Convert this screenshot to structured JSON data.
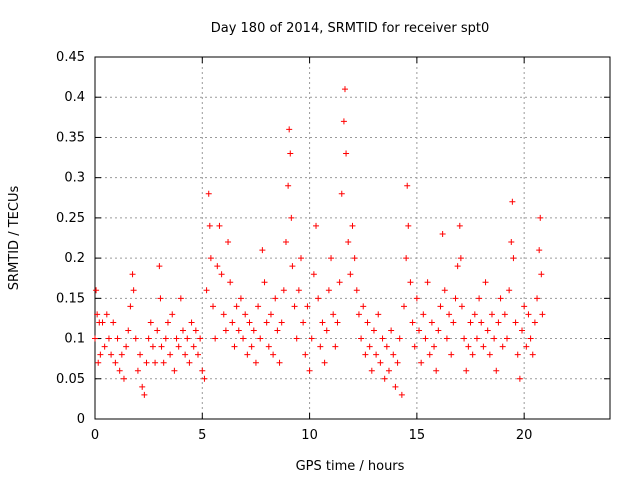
{
  "chart_data": {
    "type": "scatter",
    "title": "Day 180 of 2014, SRMTID for receiver spt0",
    "xlabel": "GPS time / hours",
    "ylabel": "SRMTID / TECUs",
    "xlim": [
      0,
      24
    ],
    "ylim": [
      0,
      0.45
    ],
    "xticks": [
      0,
      5,
      10,
      15,
      20
    ],
    "yticks": [
      0,
      0.05,
      0.1,
      0.15,
      0.2,
      0.25,
      0.3,
      0.35,
      0.4,
      0.45
    ],
    "grid": true,
    "marker": "+",
    "color": "#ff0000",
    "series": [
      {
        "name": "SRMTID",
        "points": [
          [
            0.0,
            0.1
          ],
          [
            0.05,
            0.16
          ],
          [
            0.1,
            0.13
          ],
          [
            0.15,
            0.07
          ],
          [
            0.2,
            0.12
          ],
          [
            0.25,
            0.08
          ],
          [
            0.35,
            0.12
          ],
          [
            0.45,
            0.09
          ],
          [
            0.55,
            0.13
          ],
          [
            0.65,
            0.1
          ],
          [
            0.75,
            0.08
          ],
          [
            0.85,
            0.12
          ],
          [
            0.95,
            0.07
          ],
          [
            1.05,
            0.1
          ],
          [
            1.15,
            0.06
          ],
          [
            1.25,
            0.08
          ],
          [
            1.35,
            0.05
          ],
          [
            1.45,
            0.09
          ],
          [
            1.55,
            0.11
          ],
          [
            1.65,
            0.14
          ],
          [
            1.75,
            0.18
          ],
          [
            1.8,
            0.16
          ],
          [
            1.9,
            0.1
          ],
          [
            2.0,
            0.06
          ],
          [
            2.1,
            0.08
          ],
          [
            2.2,
            0.04
          ],
          [
            2.3,
            0.03
          ],
          [
            2.4,
            0.07
          ],
          [
            2.5,
            0.1
          ],
          [
            2.6,
            0.12
          ],
          [
            2.7,
            0.09
          ],
          [
            2.8,
            0.07
          ],
          [
            2.9,
            0.11
          ],
          [
            3.0,
            0.19
          ],
          [
            3.05,
            0.15
          ],
          [
            3.1,
            0.09
          ],
          [
            3.2,
            0.07
          ],
          [
            3.3,
            0.1
          ],
          [
            3.4,
            0.12
          ],
          [
            3.5,
            0.08
          ],
          [
            3.6,
            0.13
          ],
          [
            3.7,
            0.06
          ],
          [
            3.8,
            0.1
          ],
          [
            3.9,
            0.09
          ],
          [
            4.0,
            0.15
          ],
          [
            4.1,
            0.11
          ],
          [
            4.2,
            0.08
          ],
          [
            4.3,
            0.1
          ],
          [
            4.4,
            0.07
          ],
          [
            4.5,
            0.12
          ],
          [
            4.6,
            0.09
          ],
          [
            4.7,
            0.11
          ],
          [
            4.8,
            0.08
          ],
          [
            4.9,
            0.1
          ],
          [
            5.0,
            0.06
          ],
          [
            5.1,
            0.05
          ],
          [
            5.2,
            0.16
          ],
          [
            5.3,
            0.28
          ],
          [
            5.35,
            0.24
          ],
          [
            5.4,
            0.2
          ],
          [
            5.5,
            0.14
          ],
          [
            5.6,
            0.1
          ],
          [
            5.7,
            0.19
          ],
          [
            5.8,
            0.24
          ],
          [
            5.9,
            0.18
          ],
          [
            6.0,
            0.13
          ],
          [
            6.1,
            0.11
          ],
          [
            6.2,
            0.22
          ],
          [
            6.3,
            0.17
          ],
          [
            6.4,
            0.12
          ],
          [
            6.5,
            0.09
          ],
          [
            6.6,
            0.14
          ],
          [
            6.7,
            0.11
          ],
          [
            6.8,
            0.15
          ],
          [
            6.9,
            0.1
          ],
          [
            7.0,
            0.13
          ],
          [
            7.1,
            0.08
          ],
          [
            7.2,
            0.12
          ],
          [
            7.3,
            0.09
          ],
          [
            7.4,
            0.11
          ],
          [
            7.5,
            0.07
          ],
          [
            7.6,
            0.14
          ],
          [
            7.7,
            0.1
          ],
          [
            7.8,
            0.21
          ],
          [
            7.9,
            0.17
          ],
          [
            8.0,
            0.12
          ],
          [
            8.1,
            0.09
          ],
          [
            8.2,
            0.13
          ],
          [
            8.3,
            0.08
          ],
          [
            8.4,
            0.15
          ],
          [
            8.5,
            0.11
          ],
          [
            8.6,
            0.07
          ],
          [
            8.7,
            0.12
          ],
          [
            8.8,
            0.16
          ],
          [
            8.9,
            0.22
          ],
          [
            9.0,
            0.29
          ],
          [
            9.05,
            0.36
          ],
          [
            9.1,
            0.33
          ],
          [
            9.15,
            0.25
          ],
          [
            9.2,
            0.19
          ],
          [
            9.3,
            0.14
          ],
          [
            9.4,
            0.1
          ],
          [
            9.5,
            0.16
          ],
          [
            9.6,
            0.2
          ],
          [
            9.7,
            0.12
          ],
          [
            9.8,
            0.08
          ],
          [
            9.9,
            0.14
          ],
          [
            10.0,
            0.06
          ],
          [
            10.1,
            0.1
          ],
          [
            10.2,
            0.18
          ],
          [
            10.3,
            0.24
          ],
          [
            10.4,
            0.15
          ],
          [
            10.5,
            0.09
          ],
          [
            10.6,
            0.12
          ],
          [
            10.7,
            0.07
          ],
          [
            10.8,
            0.11
          ],
          [
            10.9,
            0.16
          ],
          [
            11.0,
            0.2
          ],
          [
            11.1,
            0.13
          ],
          [
            11.2,
            0.09
          ],
          [
            11.3,
            0.12
          ],
          [
            11.4,
            0.17
          ],
          [
            11.5,
            0.28
          ],
          [
            11.6,
            0.37
          ],
          [
            11.65,
            0.41
          ],
          [
            11.7,
            0.33
          ],
          [
            11.8,
            0.22
          ],
          [
            11.9,
            0.18
          ],
          [
            12.0,
            0.24
          ],
          [
            12.1,
            0.2
          ],
          [
            12.2,
            0.16
          ],
          [
            12.3,
            0.13
          ],
          [
            12.4,
            0.1
          ],
          [
            12.5,
            0.14
          ],
          [
            12.6,
            0.08
          ],
          [
            12.7,
            0.12
          ],
          [
            12.8,
            0.09
          ],
          [
            12.9,
            0.06
          ],
          [
            13.0,
            0.11
          ],
          [
            13.1,
            0.08
          ],
          [
            13.2,
            0.13
          ],
          [
            13.3,
            0.07
          ],
          [
            13.4,
            0.1
          ],
          [
            13.5,
            0.05
          ],
          [
            13.6,
            0.09
          ],
          [
            13.7,
            0.06
          ],
          [
            13.8,
            0.11
          ],
          [
            13.9,
            0.08
          ],
          [
            14.0,
            0.04
          ],
          [
            14.1,
            0.07
          ],
          [
            14.2,
            0.1
          ],
          [
            14.3,
            0.03
          ],
          [
            14.4,
            0.14
          ],
          [
            14.5,
            0.2
          ],
          [
            14.55,
            0.29
          ],
          [
            14.6,
            0.24
          ],
          [
            14.7,
            0.17
          ],
          [
            14.8,
            0.12
          ],
          [
            14.9,
            0.09
          ],
          [
            15.0,
            0.15
          ],
          [
            15.1,
            0.11
          ],
          [
            15.2,
            0.07
          ],
          [
            15.3,
            0.13
          ],
          [
            15.4,
            0.1
          ],
          [
            15.5,
            0.17
          ],
          [
            15.6,
            0.08
          ],
          [
            15.7,
            0.12
          ],
          [
            15.8,
            0.09
          ],
          [
            15.9,
            0.06
          ],
          [
            16.0,
            0.11
          ],
          [
            16.1,
            0.14
          ],
          [
            16.2,
            0.23
          ],
          [
            16.3,
            0.16
          ],
          [
            16.4,
            0.1
          ],
          [
            16.5,
            0.13
          ],
          [
            16.6,
            0.08
          ],
          [
            16.7,
            0.12
          ],
          [
            16.8,
            0.15
          ],
          [
            16.9,
            0.19
          ],
          [
            17.0,
            0.24
          ],
          [
            17.05,
            0.2
          ],
          [
            17.1,
            0.14
          ],
          [
            17.2,
            0.1
          ],
          [
            17.3,
            0.06
          ],
          [
            17.4,
            0.09
          ],
          [
            17.5,
            0.12
          ],
          [
            17.6,
            0.08
          ],
          [
            17.7,
            0.13
          ],
          [
            17.8,
            0.1
          ],
          [
            17.9,
            0.15
          ],
          [
            18.0,
            0.12
          ],
          [
            18.1,
            0.09
          ],
          [
            18.2,
            0.17
          ],
          [
            18.3,
            0.11
          ],
          [
            18.4,
            0.08
          ],
          [
            18.5,
            0.13
          ],
          [
            18.6,
            0.1
          ],
          [
            18.7,
            0.06
          ],
          [
            18.8,
            0.12
          ],
          [
            18.9,
            0.15
          ],
          [
            19.0,
            0.09
          ],
          [
            19.1,
            0.13
          ],
          [
            19.2,
            0.1
          ],
          [
            19.3,
            0.16
          ],
          [
            19.4,
            0.22
          ],
          [
            19.45,
            0.27
          ],
          [
            19.5,
            0.2
          ],
          [
            19.6,
            0.12
          ],
          [
            19.7,
            0.08
          ],
          [
            19.8,
            0.05
          ],
          [
            19.9,
            0.11
          ],
          [
            20.0,
            0.14
          ],
          [
            20.1,
            0.09
          ],
          [
            20.2,
            0.13
          ],
          [
            20.3,
            0.1
          ],
          [
            20.4,
            0.08
          ],
          [
            20.5,
            0.12
          ],
          [
            20.6,
            0.15
          ],
          [
            20.7,
            0.21
          ],
          [
            20.75,
            0.25
          ],
          [
            20.8,
            0.18
          ],
          [
            20.85,
            0.13
          ]
        ]
      }
    ]
  }
}
